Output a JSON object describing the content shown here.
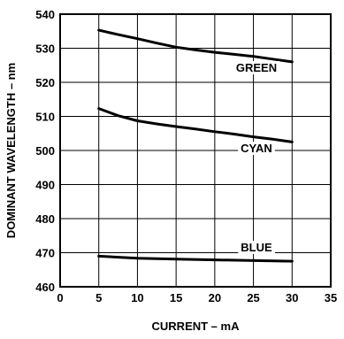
{
  "chart_data": {
    "type": "line",
    "xlabel": "CURRENT – mA",
    "ylabel": "DOMINANT WAVELENGTH – nm",
    "xlim": [
      0,
      35
    ],
    "ylim": [
      460,
      540
    ],
    "xticks": [
      0,
      5,
      10,
      15,
      20,
      25,
      30,
      35
    ],
    "yticks": [
      460,
      470,
      480,
      490,
      500,
      510,
      520,
      530,
      540
    ],
    "grid": true,
    "line_color": "#000000",
    "series": [
      {
        "name": "GREEN",
        "x": [
          5,
          7.5,
          10,
          12.5,
          15,
          17.5,
          20,
          22.5,
          25,
          27.5,
          30
        ],
        "y": [
          535.3,
          534.0,
          532.8,
          531.5,
          530.3,
          529.5,
          528.8,
          528.2,
          527.6,
          526.8,
          526.0
        ]
      },
      {
        "name": "CYAN",
        "x": [
          5,
          7.5,
          10,
          12.5,
          15,
          17.5,
          20,
          22.5,
          25,
          27.5,
          30
        ],
        "y": [
          512.3,
          510.2,
          508.7,
          507.8,
          507.0,
          506.3,
          505.5,
          504.8,
          504.0,
          503.3,
          502.5
        ]
      },
      {
        "name": "BLUE",
        "x": [
          5,
          10,
          15,
          20,
          25,
          30
        ],
        "y": [
          469.0,
          468.4,
          468.1,
          467.9,
          467.7,
          467.5
        ]
      }
    ]
  }
}
